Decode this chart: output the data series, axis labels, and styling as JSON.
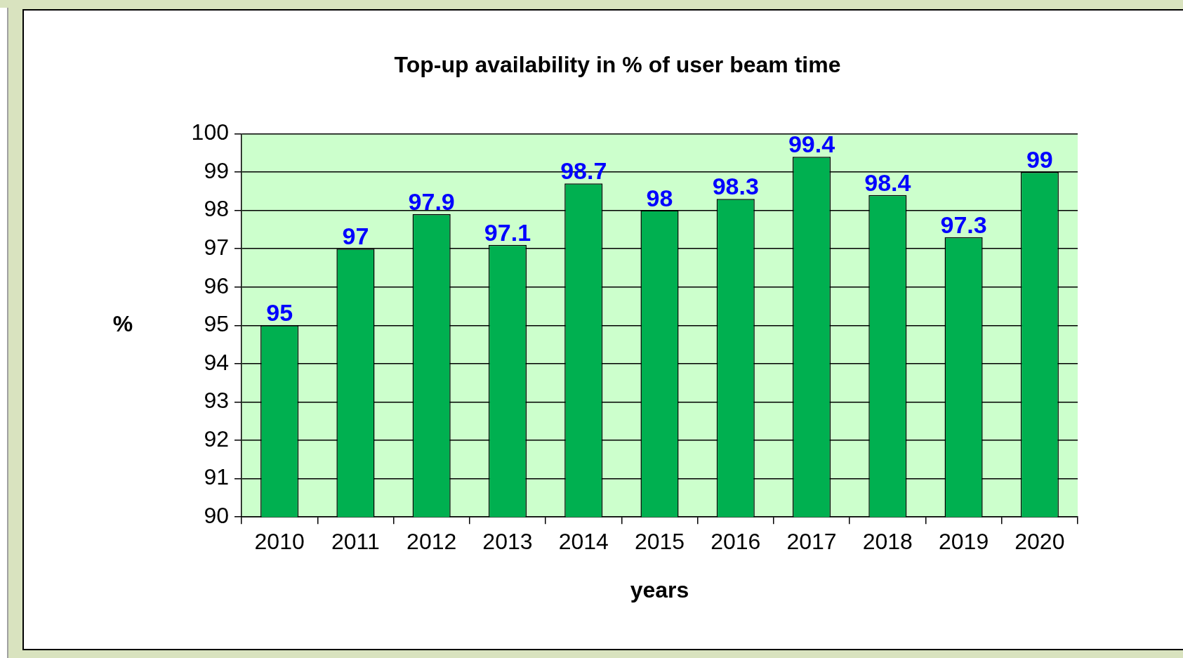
{
  "chart_data": {
    "type": "bar",
    "title": "Top-up availability in % of user beam time",
    "xlabel": "years",
    "ylabel": "%",
    "categories": [
      "2010",
      "2011",
      "2012",
      "2013",
      "2014",
      "2015",
      "2016",
      "2017",
      "2018",
      "2019",
      "2020"
    ],
    "values": [
      95,
      97,
      97.9,
      97.1,
      98.7,
      98,
      98.3,
      99.4,
      98.4,
      97.3,
      99
    ],
    "color": "#00b050",
    "ylim": [
      90,
      100
    ],
    "yticks": [
      90,
      91,
      92,
      93,
      94,
      95,
      96,
      97,
      98,
      99,
      100
    ],
    "grid": "y",
    "data_labels": true
  }
}
